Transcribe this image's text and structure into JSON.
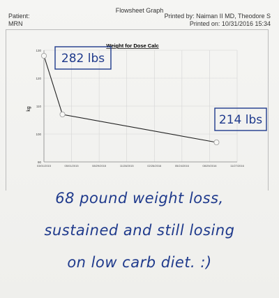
{
  "header": {
    "title": "Flowsheet Graph",
    "patient_label": "Patient:",
    "printed_by": "Printed by: Naiman II MD, Theodore S",
    "mrn_label": "MRN",
    "printed_on": "Printed on: 10/31/2016 15:34"
  },
  "chart_data": {
    "type": "line",
    "title": "Weight for Dose Calc",
    "ylabel": "kg",
    "xlabel": "",
    "ylim": [
      90,
      130
    ],
    "yticks": [
      "130",
      "120",
      "110",
      "100",
      "90"
    ],
    "xticks": [
      "03/01/2015",
      "05/01/2015",
      "08/29/2015",
      "11/28/2015",
      "02/26/2016",
      "05/24/2016",
      "08/29/2016",
      "11/27/2016"
    ],
    "x": [
      "03/01/2015",
      "05/01/2015",
      "09/20/2016"
    ],
    "series": [
      {
        "values": [
          128,
          107,
          97
        ],
        "color": "#222222"
      }
    ],
    "grid": true,
    "annotations": [
      "282 lbs",
      "214 lbs"
    ]
  },
  "handwriting": {
    "line1": "68 pound weight loss,",
    "line2": "sustained and still losing",
    "line3": "on low carb diet. :)"
  },
  "colors": {
    "ink": "#1f3a8c",
    "plot_line": "#222222"
  }
}
